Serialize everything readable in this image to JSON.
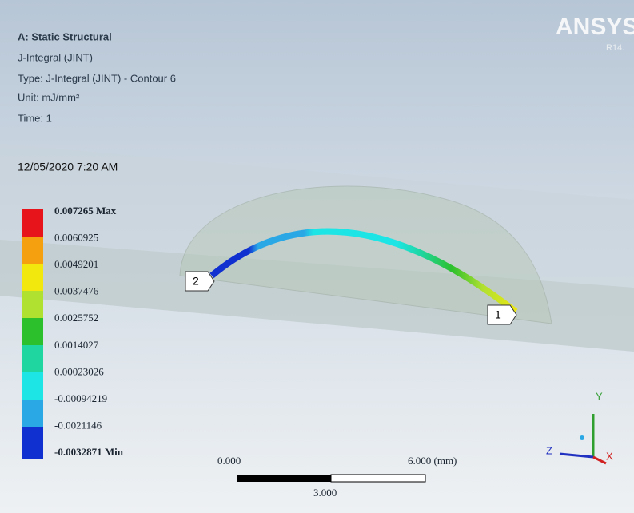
{
  "header": {
    "title": "A: Static Structural",
    "result": "J-Integral (JINT)",
    "type": "Type: J-Integral (JINT) - Contour 6",
    "unit": "Unit: mJ/mm²",
    "time": "Time: 1",
    "date": "12/05/2020 7:20 AM"
  },
  "logo": {
    "name": "ANSYS",
    "version": "R14."
  },
  "legend": {
    "labels": [
      "0.007265 Max",
      "0.0060925",
      "0.0049201",
      "0.0037476",
      "0.0025752",
      "0.0014027",
      "0.00023026",
      "-0.00094219",
      "-0.0021146",
      "-0.0032871 Min"
    ]
  },
  "scale_bar": {
    "start": "0.000",
    "end": "6.000 (mm)",
    "middle": "3.000"
  },
  "markers": [
    "2",
    "1"
  ],
  "triad": {
    "y": "Y",
    "z": "Z",
    "x": "X"
  }
}
